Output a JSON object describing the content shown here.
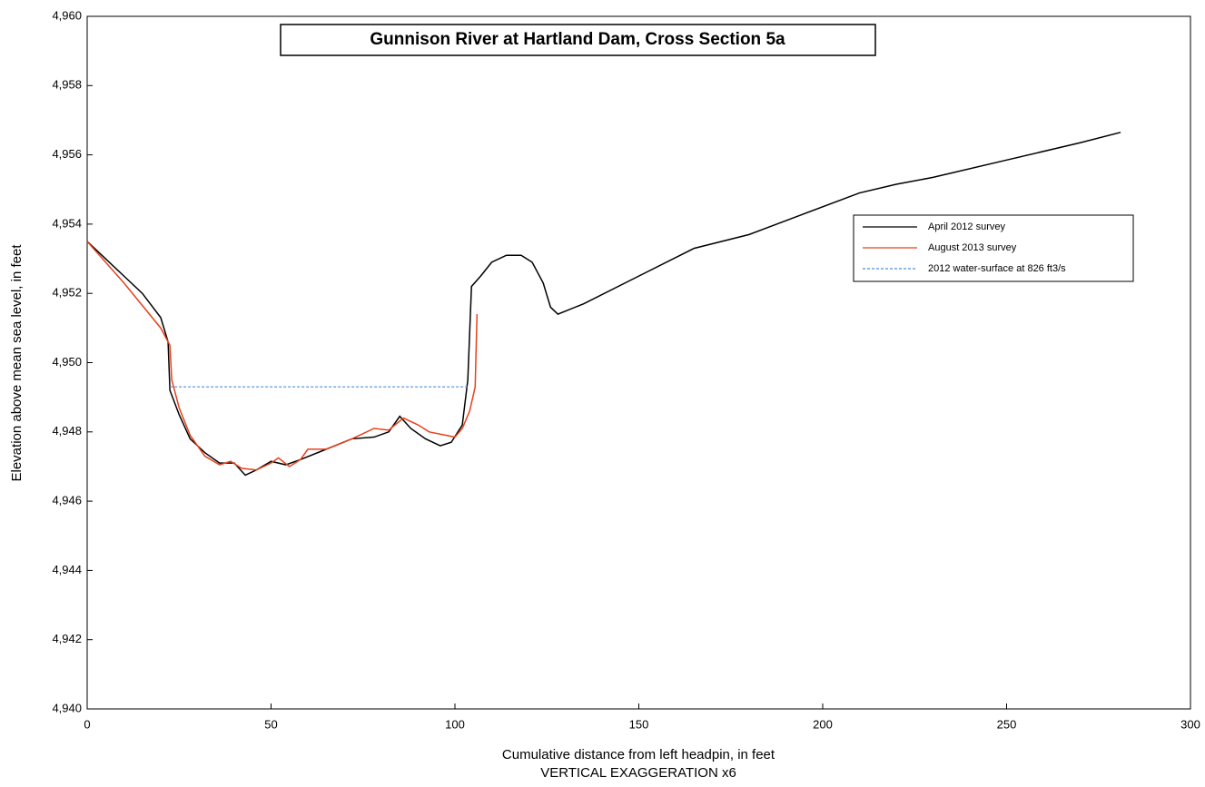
{
  "chart_data": {
    "type": "line",
    "title": "Gunnison River at Hartland Dam, Cross Section 5a",
    "x_label": "Cumulative distance from left headpin, in feet",
    "annotation": "VERTICAL EXAGGERATION  x6",
    "y_label": "Elevation above mean sea level, in feet",
    "xlim": [
      0,
      300
    ],
    "xticks": [
      0,
      50,
      100,
      150,
      200,
      250,
      300
    ],
    "ylim": [
      4940,
      4960
    ],
    "yticks": [
      {
        "value": 4940,
        "label": "4,940"
      },
      {
        "value": 4942,
        "label": "4,942"
      },
      {
        "value": 4944,
        "label": "4,944"
      },
      {
        "value": 4946,
        "label": "4,946"
      },
      {
        "value": 4948,
        "label": "4,948"
      },
      {
        "value": 4950,
        "label": "4,950"
      },
      {
        "value": 4952,
        "label": "4,952"
      },
      {
        "value": 4954,
        "label": "4,954"
      },
      {
        "value": 4956,
        "label": "4,956"
      },
      {
        "value": 4958,
        "label": "4,958"
      },
      {
        "value": 4960,
        "label": "4,960"
      }
    ],
    "grid": false,
    "legend_position": "upper right",
    "series": [
      {
        "name": "April 2012 survey",
        "color": "#000000",
        "dash": false,
        "x": [
          0,
          5,
          10,
          15,
          20,
          22,
          22.5,
          25,
          28,
          32,
          36,
          40,
          43,
          46,
          50,
          54,
          58,
          65,
          72,
          78,
          82,
          85,
          88,
          92,
          96,
          99,
          102,
          103.5,
          104.5,
          107,
          110,
          114,
          118,
          121,
          124,
          126,
          128,
          135,
          150,
          165,
          180,
          195,
          210,
          220,
          230,
          250,
          270,
          281
        ],
        "values": [
          4953.5,
          4953.0,
          4952.5,
          4952.0,
          4951.3,
          4950.6,
          4949.2,
          4948.5,
          4947.8,
          4947.4,
          4947.1,
          4947.1,
          4946.75,
          4946.9,
          4947.15,
          4947.05,
          4947.2,
          4947.5,
          4947.8,
          4947.85,
          4948.0,
          4948.45,
          4948.1,
          4947.8,
          4947.6,
          4947.7,
          4948.2,
          4949.5,
          4952.2,
          4952.5,
          4952.9,
          4953.1,
          4953.1,
          4952.9,
          4952.3,
          4951.6,
          4951.4,
          4951.7,
          4952.5,
          4953.3,
          4953.7,
          4954.3,
          4954.9,
          4955.15,
          4955.35,
          4955.85,
          4956.35,
          4956.65
        ]
      },
      {
        "name": "August 2013 survey",
        "color": "#e8401c",
        "dash": false,
        "x": [
          0,
          10,
          20,
          22.5,
          23,
          25,
          28,
          32,
          36,
          39,
          42,
          46,
          50,
          52,
          55,
          58,
          60,
          65,
          72,
          78,
          82,
          86,
          90,
          93,
          100,
          102,
          104,
          105.5,
          106
        ],
        "values": [
          4953.5,
          4952.3,
          4951.0,
          4950.5,
          4949.5,
          4948.7,
          4947.9,
          4947.3,
          4947.05,
          4947.15,
          4946.95,
          4946.9,
          4947.1,
          4947.25,
          4947.0,
          4947.2,
          4947.5,
          4947.5,
          4947.8,
          4948.1,
          4948.05,
          4948.4,
          4948.2,
          4948.0,
          4947.85,
          4948.1,
          4948.6,
          4949.3,
          4951.4
        ]
      },
      {
        "name": "2012 water-surface at 826 ft3/s",
        "color": "#4a90d9",
        "dash": true,
        "x": [
          22.5,
          103.5
        ],
        "values": [
          4949.3,
          4949.3
        ]
      }
    ]
  }
}
